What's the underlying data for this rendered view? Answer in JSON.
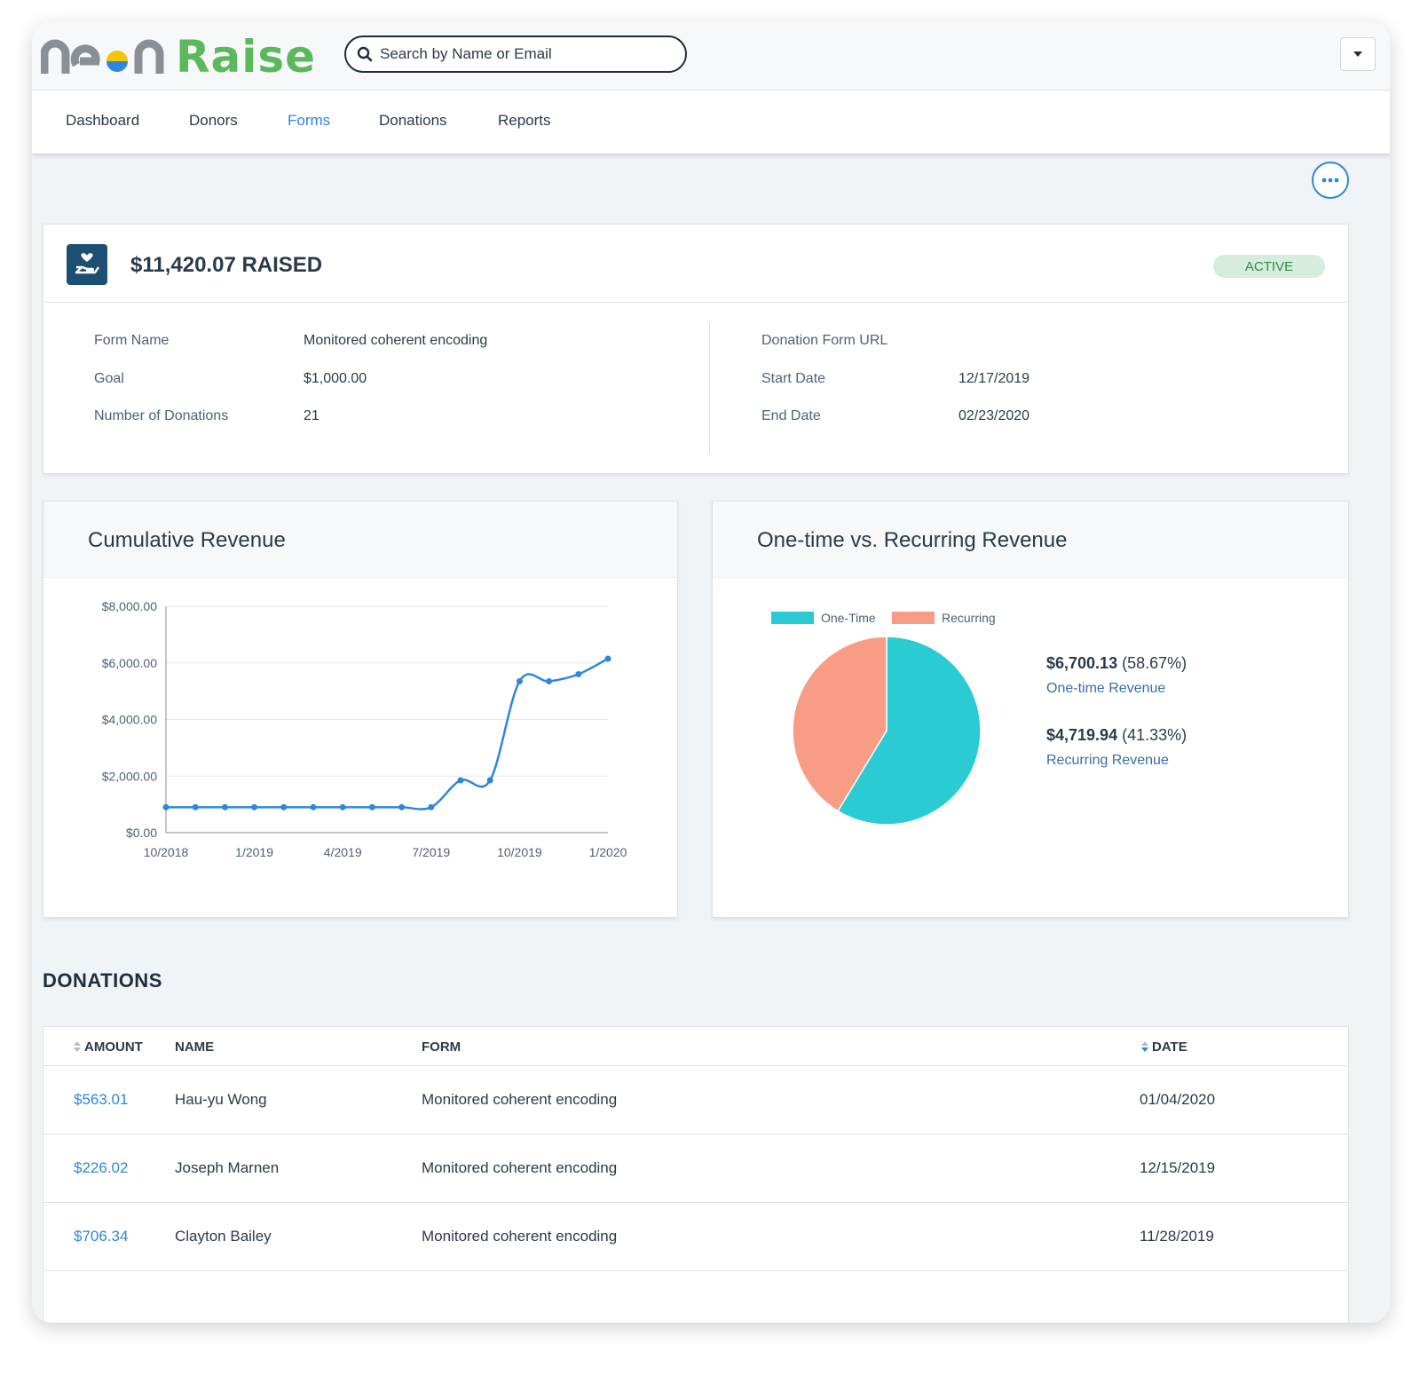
{
  "app": {
    "logo_text_neon": "neon",
    "logo_text_raise": "Raise",
    "brand_green": "#5cb85c",
    "accent_blue": "#2e86de"
  },
  "search": {
    "placeholder": "Search by Name or Email"
  },
  "nav": {
    "items": [
      {
        "label": "Dashboard",
        "active": false
      },
      {
        "label": "Donors",
        "active": false
      },
      {
        "label": "Forms",
        "active": true
      },
      {
        "label": "Donations",
        "active": false
      },
      {
        "label": "Reports",
        "active": false
      }
    ]
  },
  "summary": {
    "raised": "$11,420.07 RAISED",
    "status": "ACTIVE",
    "left": [
      {
        "label": "Form Name",
        "value": "Monitored coherent encoding"
      },
      {
        "label": "Goal",
        "value": "$1,000.00"
      },
      {
        "label": "Number of Donations",
        "value": "21"
      }
    ],
    "right": [
      {
        "label": "Donation Form URL",
        "value": ""
      },
      {
        "label": "Start Date",
        "value": "12/17/2019"
      },
      {
        "label": "End Date",
        "value": "02/23/2020"
      }
    ]
  },
  "charts": {
    "cumulative_title": "Cumulative Revenue",
    "pie_title": "One-time vs. Recurring Revenue",
    "one_time_amount": "$6,700.13",
    "one_time_pct": "(58.67%)",
    "one_time_label": "One-time Revenue",
    "recurring_amount": "$4,719.94",
    "recurring_pct": "(41.33%)",
    "recurring_label": "Recurring Revenue"
  },
  "chart_data": [
    {
      "type": "line",
      "title": "Cumulative Revenue",
      "xlabel": "",
      "ylabel": "",
      "x_ticks": [
        "10/2018",
        "1/2019",
        "4/2019",
        "7/2019",
        "10/2019",
        "1/2020"
      ],
      "y_ticks": [
        "$8,000.00",
        "$6,000.00",
        "$4,000.00",
        "$2,000.00",
        "$0.00"
      ],
      "ylim": [
        0,
        8000
      ],
      "grid": true,
      "color": "#2e86de",
      "x": [
        "10/2018",
        "11/2018",
        "12/2018",
        "1/2019",
        "2/2019",
        "3/2019",
        "4/2019",
        "5/2019",
        "6/2019",
        "7/2019",
        "8/2019",
        "9/2019",
        "10/2019",
        "11/2019",
        "12/2019",
        "1/2020"
      ],
      "values": [
        900,
        900,
        900,
        900,
        900,
        900,
        900,
        900,
        900,
        900,
        1850,
        1850,
        5350,
        5350,
        5600,
        6150
      ]
    },
    {
      "type": "pie",
      "title": "One-time vs. Recurring Revenue",
      "legend_position": "top",
      "slices": [
        {
          "label": "One-Time",
          "value": 6700.13,
          "color": "#2bcbd3"
        },
        {
          "label": "Recurring",
          "value": 4719.94,
          "color": "#f89c86"
        }
      ]
    }
  ],
  "donations": {
    "title": "DONATIONS",
    "columns": [
      "AMOUNT",
      "NAME",
      "FORM",
      "DATE"
    ],
    "rows": [
      {
        "amount": "$563.01",
        "name": "Hau-yu Wong",
        "form": "Monitored coherent encoding",
        "date": "01/04/2020"
      },
      {
        "amount": "$226.02",
        "name": "Joseph Marnen",
        "form": "Monitored coherent encoding",
        "date": "12/15/2019"
      },
      {
        "amount": "$706.34",
        "name": "Clayton Bailey",
        "form": "Monitored coherent encoding",
        "date": "11/28/2019"
      }
    ]
  }
}
